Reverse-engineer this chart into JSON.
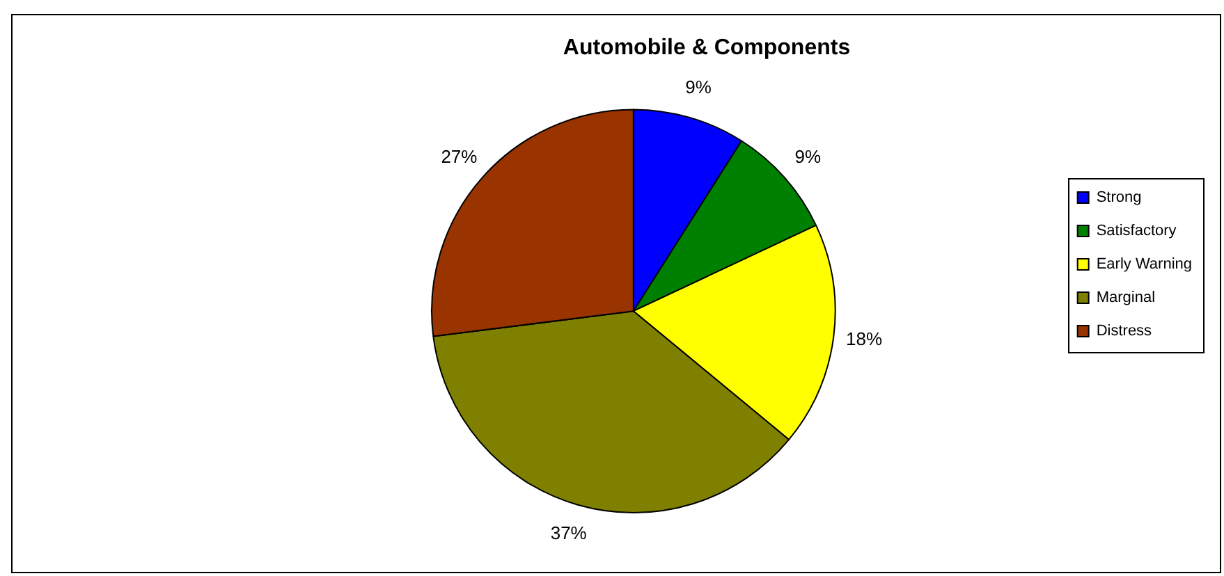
{
  "chart_data": {
    "type": "pie",
    "title": "Automobile & Components",
    "categories": [
      "Strong",
      "Satisfactory",
      "Early Warning",
      "Marginal",
      "Distress"
    ],
    "values": [
      9,
      9,
      18,
      37,
      27
    ],
    "colors": [
      "#0000ff",
      "#008000",
      "#ffff00",
      "#808000",
      "#993300"
    ],
    "value_labels": [
      "9%",
      "9%",
      "18%",
      "37%",
      "27%"
    ],
    "legend": "right"
  }
}
